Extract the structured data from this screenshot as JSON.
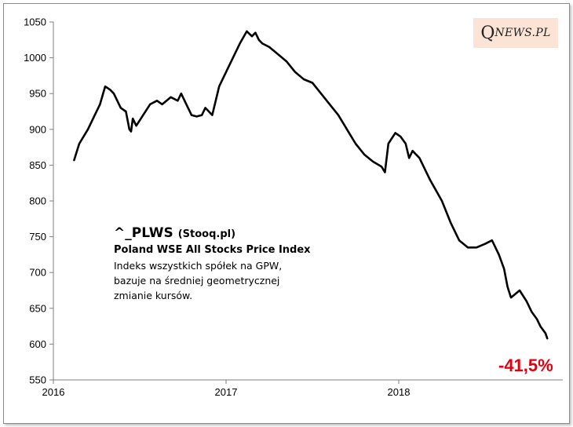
{
  "logo": {
    "big": "Q",
    "small": "NEWS.PL"
  },
  "annotation": {
    "ticker": "^_PLWS",
    "source": "(Stooq.pl)",
    "name": "Poland WSE All Stocks Price Index",
    "description": [
      "Indeks wszystkich spółek na GPW,",
      "bazuje na średniej geometrycznej",
      "zmianie kursów."
    ]
  },
  "change_label": "-41,5%",
  "colors": {
    "line": "#000000",
    "change": "#e0000f",
    "logo_bg": "#fbe4d5"
  },
  "chart_data": {
    "type": "line",
    "title": "",
    "xlabel": "",
    "ylabel": "",
    "xlim": [
      2016.0,
      2018.95
    ],
    "ylim": [
      550,
      1050
    ],
    "yticks": [
      550,
      600,
      650,
      700,
      750,
      800,
      850,
      900,
      950,
      1000,
      1050
    ],
    "xticks": [
      {
        "value": 2016,
        "label": "2016"
      },
      {
        "value": 2017,
        "label": "2017"
      },
      {
        "value": 2018,
        "label": "2018"
      }
    ],
    "grid": false,
    "legend": "none",
    "series": [
      {
        "x": [
          2016.12,
          2016.15,
          2016.2,
          2016.23,
          2016.27,
          2016.3,
          2016.33,
          2016.35,
          2016.39,
          2016.42,
          2016.44,
          2016.45,
          2016.46,
          2016.48,
          2016.52,
          2016.56,
          2016.6,
          2016.63,
          2016.68,
          2016.72,
          2016.74,
          2016.77,
          2016.8,
          2016.83,
          2016.86,
          2016.88,
          2016.92,
          2016.96,
          2017.0,
          2017.04,
          2017.08,
          2017.12,
          2017.15,
          2017.17,
          2017.19,
          2017.21,
          2017.25,
          2017.3,
          2017.35,
          2017.4,
          2017.45,
          2017.5,
          2017.55,
          2017.6,
          2017.65,
          2017.7,
          2017.75,
          2017.8,
          2017.85,
          2017.9,
          2017.92,
          2017.94,
          2017.98,
          2018.01,
          2018.04,
          2018.06,
          2018.08,
          2018.12,
          2018.18,
          2018.25,
          2018.3,
          2018.35,
          2018.4,
          2018.45,
          2018.5,
          2018.54,
          2018.58,
          2018.61,
          2018.63,
          2018.65,
          2018.7,
          2018.74,
          2018.77,
          2018.8,
          2018.82,
          2018.85,
          2018.86
        ],
        "y": [
          857,
          880,
          900,
          915,
          935,
          960,
          955,
          950,
          930,
          925,
          900,
          897,
          915,
          905,
          920,
          935,
          940,
          935,
          945,
          940,
          950,
          935,
          920,
          918,
          920,
          930,
          920,
          960,
          980,
          1000,
          1020,
          1037,
          1030,
          1035,
          1025,
          1020,
          1015,
          1005,
          995,
          980,
          970,
          965,
          950,
          935,
          920,
          900,
          880,
          865,
          855,
          848,
          840,
          880,
          895,
          890,
          880,
          860,
          870,
          860,
          830,
          800,
          770,
          745,
          735,
          735,
          740,
          745,
          725,
          705,
          680,
          665,
          675,
          660,
          645,
          635,
          625,
          615,
          608
        ]
      }
    ]
  }
}
